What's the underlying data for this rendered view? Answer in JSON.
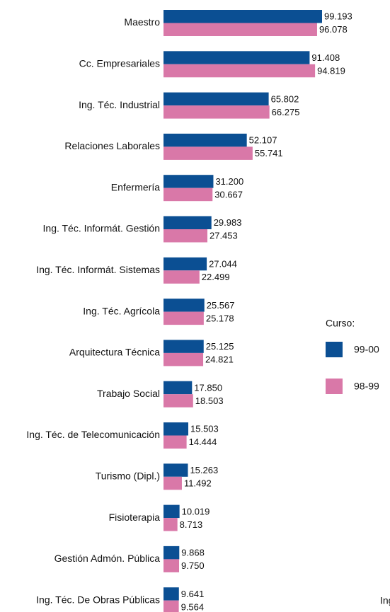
{
  "chart_data": {
    "type": "bar",
    "orientation": "horizontal",
    "categories": [
      "Maestro",
      "Cc. Empresariales",
      "Ing. Téc. Industrial",
      "Relaciones Laborales",
      "Enfermería",
      "Ing. Téc. Informát. Gestión",
      "Ing. Téc. Informát. Sistemas",
      "Ing. Téc. Agrícola",
      "Arquitectura Técnica",
      "Trabajo Social",
      "Ing. Téc. de Telecomunicación",
      "Turismo (Dipl.)",
      "Fisioterapia",
      "Gestión Admón. Pública",
      "Ing. Téc. De Obras Públicas"
    ],
    "legend_title": "Curso:",
    "series": [
      {
        "name": "99-00",
        "color": "#0b4f93",
        "values": [
          99193,
          91408,
          65802,
          52107,
          31200,
          29983,
          27044,
          25567,
          25125,
          17850,
          15503,
          15263,
          10019,
          9868,
          9641
        ],
        "value_labels": [
          "99.193",
          "91.408",
          "65.802",
          "52.107",
          "31.200",
          "29.983",
          "27.044",
          "25.567",
          "25.125",
          "17.850",
          "15.503",
          "15.263",
          "10.019",
          "9.868",
          "9.641"
        ]
      },
      {
        "name": "98-99",
        "color": "#d978a8",
        "values": [
          96078,
          94819,
          66275,
          55741,
          30667,
          27453,
          22499,
          25178,
          24821,
          18503,
          14444,
          11492,
          8713,
          9750,
          9564
        ],
        "value_labels": [
          "96.078",
          "94.819",
          "66.275",
          "55.741",
          "30.667",
          "27.453",
          "22.499",
          "25.178",
          "24.821",
          "18.503",
          "14.444",
          "11.492",
          "8.713",
          "9.750",
          "9.564"
        ]
      }
    ],
    "annotation": "Ing"
  }
}
